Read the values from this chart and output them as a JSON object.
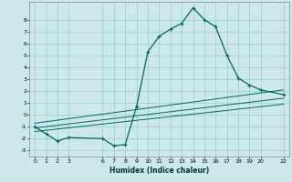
{
  "xlabel": "Humidex (Indice chaleur)",
  "bg_color": "#cce8e8",
  "grid_color": "#99cccc",
  "line_color": "#006666",
  "xlim": [
    -0.5,
    22.5
  ],
  "ylim": [
    -3.5,
    9.5
  ],
  "xticks": [
    0,
    1,
    2,
    3,
    6,
    7,
    8,
    9,
    10,
    11,
    12,
    13,
    14,
    15,
    16,
    17,
    18,
    19,
    20,
    22
  ],
  "yticks": [
    -3,
    -2,
    -1,
    0,
    1,
    2,
    3,
    4,
    5,
    6,
    7,
    8
  ],
  "main_x": [
    0,
    1,
    2,
    3,
    6,
    7,
    8,
    9,
    10,
    11,
    12,
    13,
    14,
    15,
    16,
    17,
    18,
    19,
    20,
    22
  ],
  "main_y": [
    -1,
    -1.6,
    -2.2,
    -1.9,
    -2.0,
    -2.6,
    -2.5,
    0.7,
    5.3,
    6.6,
    7.2,
    7.7,
    9.0,
    8.0,
    7.4,
    5.0,
    3.1,
    2.5,
    2.1,
    1.7
  ],
  "line1_x": [
    0,
    22
  ],
  "line1_y": [
    -1.4,
    0.9
  ],
  "line2_x": [
    0,
    22
  ],
  "line2_y": [
    -1.1,
    1.4
  ],
  "line3_x": [
    0,
    22
  ],
  "line3_y": [
    -0.7,
    2.1
  ]
}
